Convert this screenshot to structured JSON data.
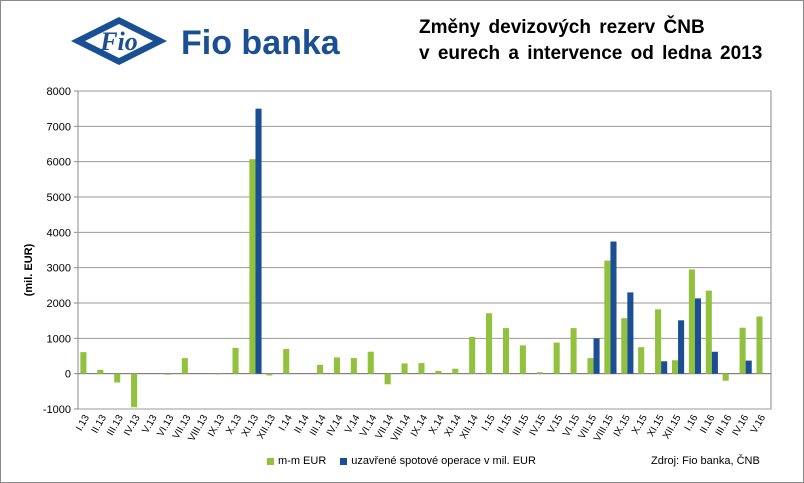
{
  "brand": {
    "logo_icon": "fio-diamond-logo",
    "logo_mark_text": "Fio",
    "name": "Fio banka",
    "color": "#1a4f93"
  },
  "source": "Zdroj: Fio banka,  ČNB",
  "chart_data": {
    "type": "bar",
    "title": [
      "Změny  devizových  rezerv  ČNB",
      "v eurech  a intervence  od ledna 2013"
    ],
    "ylabel": "(mil. EUR)",
    "ylim": [
      -1000,
      8000
    ],
    "yticks": [
      -1000,
      0,
      1000,
      2000,
      3000,
      4000,
      5000,
      6000,
      7000,
      8000
    ],
    "grid": true,
    "legend_position": "bottom",
    "categories": [
      "I.13",
      "II.13",
      "III.13",
      "IV.13",
      "V.13",
      "VI.13",
      "VII.13",
      "VIII.13",
      "IX.13",
      "X.13",
      "XI.13",
      "XII.13",
      "I.14",
      "II.14",
      "III.14",
      "IV.14",
      "V.14",
      "VI.14",
      "VII.14",
      "VIII.14",
      "IX.14",
      "X.14",
      "XI.14",
      "XII.14",
      "I.15",
      "II.15",
      "III.15",
      "IV.15",
      "V.15",
      "VI.15",
      "VII.15",
      "VIII.15",
      "IX.15",
      "X.15",
      "XI.15",
      "XII.15",
      "I.16",
      "II.16",
      "III.16",
      "IV.16",
      "V.16"
    ],
    "series": [
      {
        "name": "m-m EUR",
        "color": "#92c13e",
        "values": [
          610,
          110,
          -250,
          -950,
          0,
          -30,
          440,
          0,
          -20,
          730,
          6070,
          -50,
          700,
          0,
          250,
          460,
          440,
          620,
          -300,
          290,
          300,
          80,
          140,
          1040,
          1710,
          1290,
          800,
          40,
          880,
          1290,
          440,
          3200,
          1570,
          750,
          1820,
          380,
          2950,
          2350,
          -200,
          1300,
          1620
        ]
      },
      {
        "name": "uzavřené spotové operace v mil. EUR",
        "color": "#1a4f93",
        "values": [
          0,
          0,
          0,
          0,
          0,
          0,
          0,
          0,
          0,
          0,
          7500,
          0,
          0,
          0,
          0,
          0,
          0,
          0,
          0,
          0,
          0,
          0,
          0,
          0,
          0,
          0,
          0,
          0,
          0,
          0,
          1000,
          3740,
          2300,
          0,
          350,
          1510,
          2130,
          620,
          0,
          370,
          0
        ]
      }
    ]
  }
}
